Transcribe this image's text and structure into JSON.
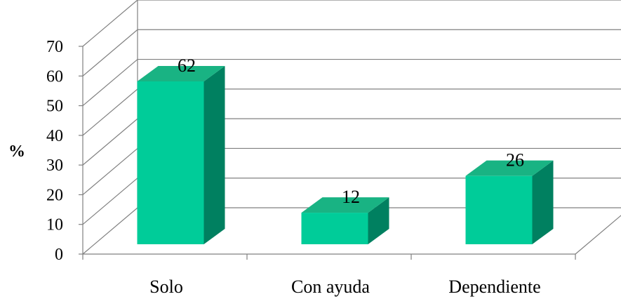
{
  "chart_data": {
    "type": "bar",
    "three_d": true,
    "categories": [
      "Solo",
      "Con ayuda",
      "Dependiente"
    ],
    "values": [
      62,
      12,
      26
    ],
    "data_labels": [
      "62",
      "12",
      "26"
    ],
    "ylabel": "%",
    "xlabel": "",
    "ylim": [
      0,
      70
    ],
    "yticks": [
      "0",
      "10",
      "20",
      "30",
      "40",
      "50",
      "60",
      "70"
    ],
    "grid": true,
    "legend": "none",
    "colors": {
      "bar_front": "#00CC99",
      "bar_top": "#19B383",
      "bar_side": "#008060",
      "grid": "#808080"
    }
  }
}
